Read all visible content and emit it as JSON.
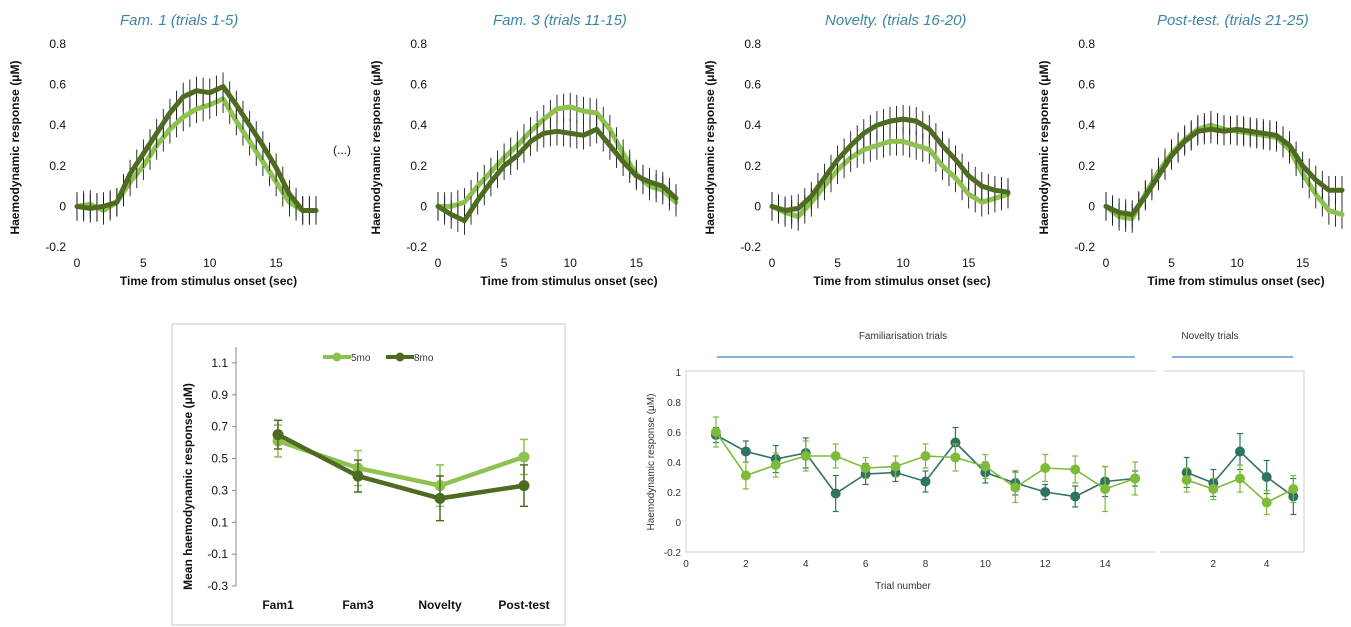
{
  "colors": {
    "light_green": "#8dc150",
    "dark_green": "#4e6b22",
    "teal": "#2f7362",
    "lime": "#7dbb39",
    "title_blue": "#3a86a0",
    "bracket_blue": "#3f82c9"
  },
  "ellipsis": "(...)",
  "chart_data": [
    {
      "type": "line",
      "title": "Fam. 1   (trials 1-5)",
      "xlabel": "Time from stimulus onset (sec)",
      "ylabel": "Haemodynamic response (μM)",
      "xlim": [
        0,
        18
      ],
      "ylim": [
        -0.2,
        0.8
      ],
      "xticks": [
        "0",
        "5",
        "10",
        "15"
      ],
      "yticks": [
        "-0.2",
        "0",
        "0.2",
        "0.4",
        "0.6",
        "0.8"
      ],
      "x": [
        0,
        1,
        2,
        3,
        4,
        5,
        6,
        7,
        8,
        9,
        10,
        11,
        12,
        13,
        14,
        15,
        16,
        17,
        18
      ],
      "series": [
        {
          "values": [
            0,
            0.01,
            -0.02,
            0.02,
            0.12,
            0.2,
            0.3,
            0.38,
            0.44,
            0.48,
            0.5,
            0.53,
            0.42,
            0.32,
            0.22,
            0.12,
            0.02,
            -0.02,
            -0.02
          ]
        },
        {
          "values": [
            0,
            -0.01,
            0,
            0.02,
            0.16,
            0.26,
            0.36,
            0.46,
            0.54,
            0.57,
            0.56,
            0.59,
            0.5,
            0.4,
            0.3,
            0.19,
            0.06,
            -0.02,
            -0.02
          ]
        }
      ]
    },
    {
      "type": "line",
      "title": "Fam. 3   (trials 11-15)",
      "xlabel": "Time from stimulus onset (sec)",
      "ylabel": "Haemodynamic response (μM)",
      "xlim": [
        0,
        18
      ],
      "ylim": [
        -0.2,
        0.8
      ],
      "xticks": [
        "0",
        "5",
        "10",
        "15"
      ],
      "yticks": [
        "-0.2",
        "0",
        "0.2",
        "0.4",
        "0.6",
        "0.8"
      ],
      "x": [
        0,
        1,
        2,
        3,
        4,
        5,
        6,
        7,
        8,
        9,
        10,
        11,
        12,
        13,
        14,
        15,
        16,
        17,
        18
      ],
      "series": [
        {
          "values": [
            0,
            0,
            0.02,
            0.1,
            0.17,
            0.24,
            0.3,
            0.37,
            0.43,
            0.48,
            0.49,
            0.47,
            0.46,
            0.38,
            0.26,
            0.16,
            0.1,
            0.08,
            0.02
          ]
        },
        {
          "values": [
            0,
            -0.04,
            -0.07,
            0.03,
            0.12,
            0.2,
            0.25,
            0.32,
            0.36,
            0.37,
            0.36,
            0.35,
            0.38,
            0.3,
            0.22,
            0.15,
            0.12,
            0.1,
            0.04
          ]
        }
      ]
    },
    {
      "type": "line",
      "title": "Novelty.  (trials 16-20)",
      "xlabel": "Time from stimulus onset (sec)",
      "ylabel": "Haemodynamic response (μM)",
      "xlim": [
        0,
        18
      ],
      "ylim": [
        -0.2,
        0.8
      ],
      "xticks": [
        "0",
        "5",
        "10",
        "15"
      ],
      "yticks": [
        "-0.2",
        "0",
        "0.2",
        "0.4",
        "0.6",
        "0.8"
      ],
      "x": [
        0,
        1,
        2,
        3,
        4,
        5,
        6,
        7,
        8,
        9,
        10,
        11,
        12,
        13,
        14,
        15,
        16,
        17,
        18
      ],
      "series": [
        {
          "values": [
            0,
            -0.03,
            -0.05,
            0.02,
            0.1,
            0.18,
            0.24,
            0.28,
            0.3,
            0.32,
            0.32,
            0.3,
            0.28,
            0.2,
            0.14,
            0.06,
            0.02,
            0.04,
            0.06
          ]
        },
        {
          "values": [
            0,
            -0.02,
            -0.01,
            0.05,
            0.14,
            0.23,
            0.3,
            0.36,
            0.4,
            0.42,
            0.43,
            0.42,
            0.38,
            0.3,
            0.23,
            0.15,
            0.1,
            0.08,
            0.07
          ]
        }
      ]
    },
    {
      "type": "line",
      "title": "Post-test.  (trials 21-25)",
      "xlabel": "Time from stimulus onset (sec)",
      "ylabel": "Haemodynamic response (μM)",
      "xlim": [
        0,
        18
      ],
      "ylim": [
        -0.2,
        0.8
      ],
      "xticks": [
        "0",
        "5",
        "10",
        "15"
      ],
      "yticks": [
        "-0.2",
        "0",
        "0.2",
        "0.4",
        "0.6",
        "0.8"
      ],
      "x": [
        0,
        1,
        2,
        3,
        4,
        5,
        6,
        7,
        8,
        9,
        10,
        11,
        12,
        13,
        14,
        15,
        16,
        17,
        18
      ],
      "series": [
        {
          "values": [
            0,
            -0.05,
            -0.06,
            0.06,
            0.17,
            0.26,
            0.33,
            0.38,
            0.4,
            0.38,
            0.37,
            0.36,
            0.35,
            0.34,
            0.28,
            0.16,
            0.06,
            -0.02,
            -0.04
          ]
        },
        {
          "values": [
            0,
            -0.03,
            -0.04,
            0.05,
            0.15,
            0.25,
            0.32,
            0.37,
            0.38,
            0.37,
            0.38,
            0.37,
            0.36,
            0.35,
            0.3,
            0.2,
            0.13,
            0.08,
            0.08
          ]
        }
      ]
    },
    {
      "type": "line",
      "categories": [
        "Fam1",
        "Fam3",
        "Novelty",
        "Post-test"
      ],
      "ylabel": "Mean haemodynamic response (μM)",
      "ylim": [
        -0.3,
        1.2
      ],
      "yticks": [
        "-0.3",
        "-0.1",
        "0.1",
        "0.3",
        "0.5",
        "0.7",
        "0.9",
        "1.1"
      ],
      "legend": "top-center",
      "series": [
        {
          "name": "5mo",
          "values": [
            0.61,
            0.44,
            0.33,
            0.51
          ],
          "err": [
            0.1,
            0.11,
            0.13,
            0.11
          ]
        },
        {
          "name": "8mo",
          "values": [
            0.65,
            0.39,
            0.25,
            0.33
          ],
          "err": [
            0.09,
            0.1,
            0.14,
            0.13
          ]
        }
      ]
    },
    {
      "type": "scatter",
      "xlabel": "Trial number",
      "ylabel": "Haemodynamic response (μM)",
      "ylim": [
        -0.2,
        1
      ],
      "yticks": [
        "-0.2",
        "0",
        "0.2",
        "0.4",
        "0.6",
        "0.8",
        "1"
      ],
      "familiarisation": {
        "label": "Familiarisation trials",
        "xlim": [
          0,
          15.8
        ],
        "xticks": [
          "0",
          "2",
          "4",
          "6",
          "8",
          "10",
          "12",
          "14"
        ],
        "x": [
          1,
          2,
          3,
          4,
          5,
          6,
          7,
          8,
          9,
          10,
          11,
          12,
          13,
          14,
          15
        ],
        "series": [
          {
            "values": [
              0.58,
              0.47,
              0.42,
              0.46,
              0.19,
              0.32,
              0.33,
              0.27,
              0.53,
              0.33,
              0.26,
              0.2,
              0.17,
              0.27,
              0.29
            ],
            "err": [
              0.05,
              0.07,
              0.09,
              0.1,
              0.12,
              0.07,
              0.06,
              0.07,
              0.1,
              0.07,
              0.08,
              0.05,
              0.07,
              0.1,
              0.05
            ]
          },
          {
            "values": [
              0.6,
              0.31,
              0.38,
              0.44,
              0.44,
              0.36,
              0.37,
              0.44,
              0.43,
              0.37,
              0.23,
              0.36,
              0.35,
              0.22,
              0.29
            ],
            "err": [
              0.1,
              0.09,
              0.08,
              0.1,
              0.08,
              0.07,
              0.07,
              0.08,
              0.09,
              0.08,
              0.1,
              0.09,
              0.09,
              0.15,
              0.11
            ]
          }
        ]
      },
      "novelty": {
        "label": "Novelty trials",
        "xlim": [
          0,
          5.4
        ],
        "xticks": [
          "2",
          "4"
        ],
        "x": [
          1,
          2,
          3,
          4,
          5
        ],
        "series": [
          {
            "values": [
              0.33,
              0.26,
              0.47,
              0.3,
              0.17
            ],
            "err": [
              0.1,
              0.09,
              0.12,
              0.11,
              0.12
            ]
          },
          {
            "values": [
              0.28,
              0.22,
              0.29,
              0.13,
              0.22
            ],
            "err": [
              0.08,
              0.07,
              0.09,
              0.08,
              0.09
            ]
          }
        ]
      }
    }
  ]
}
